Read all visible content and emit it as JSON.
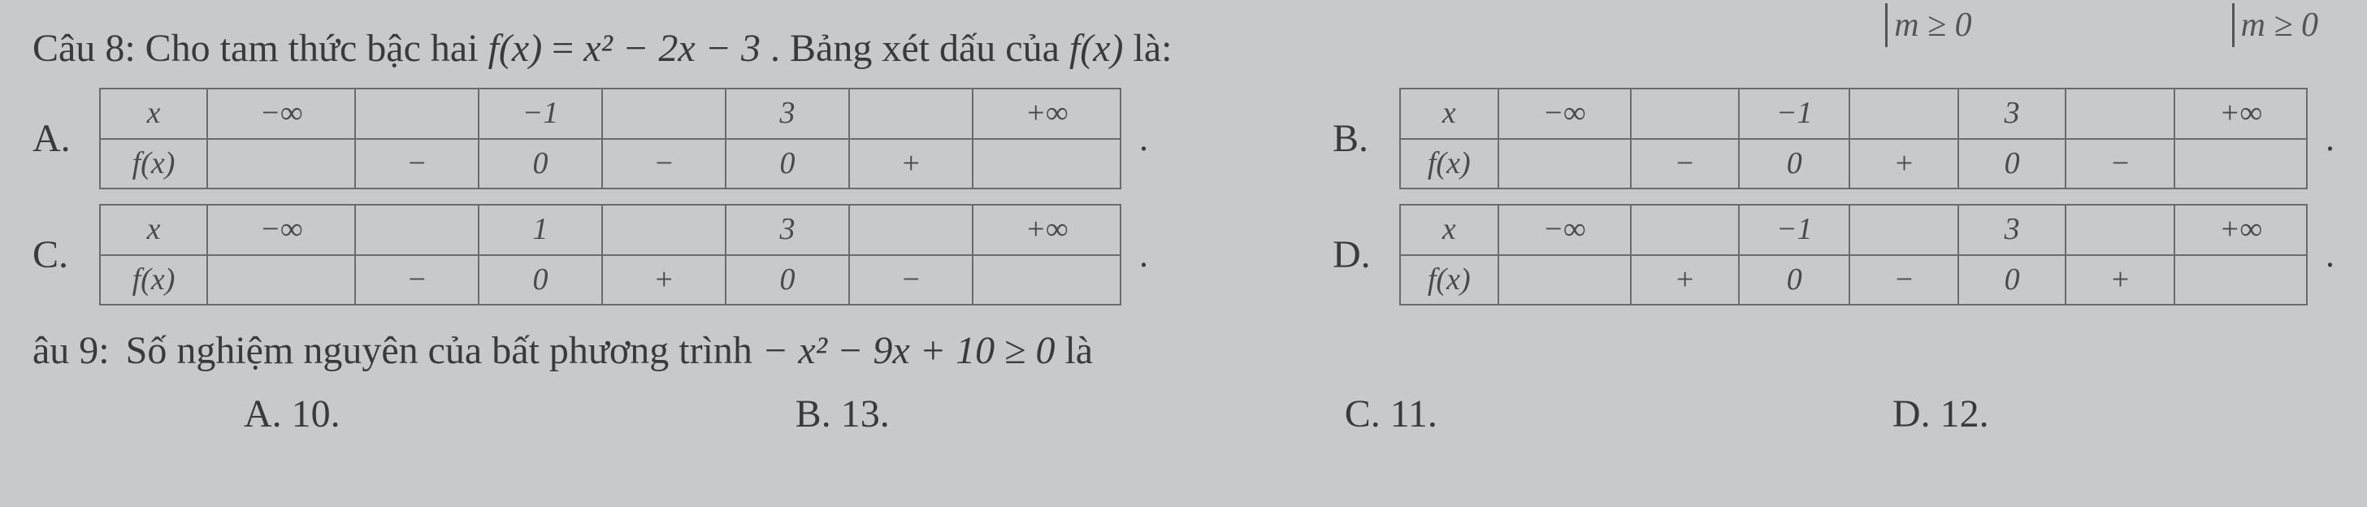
{
  "top_fragments": {
    "left": "m ≥ 0",
    "right": "m ≥ 0"
  },
  "q8": {
    "label": "Câu 8:",
    "stem_before_fx": "Cho tam thức bậc hai ",
    "fx_lhs": "f(x)",
    "fx_eq": " = ",
    "fx_rhs": "x² − 2x − 3",
    "stem_after_fx": ". Bảng xét dấu của ",
    "fx_ref": "f(x)",
    "stem_tail": " là:",
    "options": {
      "A": {
        "label": "A.",
        "header_x": "x",
        "header_fx": "f(x)",
        "cells_top": [
          "−∞",
          "",
          "−1",
          "",
          "3",
          "",
          "+∞"
        ],
        "cells_bottom": [
          "",
          "−",
          "0",
          "−",
          "0",
          "+",
          ""
        ],
        "widths": [
          "w-c",
          "w-cS",
          "w-cS",
          "w-cS",
          "w-cS",
          "w-cS",
          "w-c"
        ]
      },
      "B": {
        "label": "B.",
        "header_x": "x",
        "header_fx": "f(x)",
        "cells_top": [
          "−∞",
          "",
          "−1",
          "",
          "3",
          "",
          "+∞"
        ],
        "cells_bottom": [
          "",
          "−",
          "0",
          "+",
          "0",
          "−",
          ""
        ],
        "widths": [
          "w-c",
          "w-cS",
          "w-cS",
          "w-cS",
          "w-cS",
          "w-cS",
          "w-c"
        ]
      },
      "C": {
        "label": "C.",
        "header_x": "x",
        "header_fx": "f(x)",
        "cells_top": [
          "−∞",
          "",
          "1",
          "",
          "3",
          "",
          "+∞"
        ],
        "cells_bottom": [
          "",
          "−",
          "0",
          "+",
          "0",
          "−",
          ""
        ],
        "widths": [
          "w-c",
          "w-cS",
          "w-cS",
          "w-cS",
          "w-cS",
          "w-cS",
          "w-c"
        ]
      },
      "D": {
        "label": "D.",
        "header_x": "x",
        "header_fx": "f(x)",
        "cells_top": [
          "−∞",
          "",
          "−1",
          "",
          "3",
          "",
          "+∞"
        ],
        "cells_bottom": [
          "",
          "+",
          "0",
          "−",
          "0",
          "+",
          ""
        ],
        "widths": [
          "w-c",
          "w-cS",
          "w-cS",
          "w-cS",
          "w-cS",
          "w-cS",
          "w-c"
        ]
      }
    }
  },
  "q9": {
    "label": "âu 9:",
    "stem_a": "Số nghiệm nguyên của bất phương trình ",
    "expr": "− x² − 9x + 10 ≥ 0",
    "stem_b": " là",
    "choices": {
      "A": {
        "label": "A.",
        "value": "10."
      },
      "B": {
        "label": "B.",
        "value": "13."
      },
      "C": {
        "label": "C.",
        "value": "11."
      },
      "D": {
        "label": "D.",
        "value": "12."
      }
    }
  },
  "colors": {
    "bg": "#c8c9cb",
    "text": "#3a3a3c",
    "border": "#6b6b6e"
  }
}
